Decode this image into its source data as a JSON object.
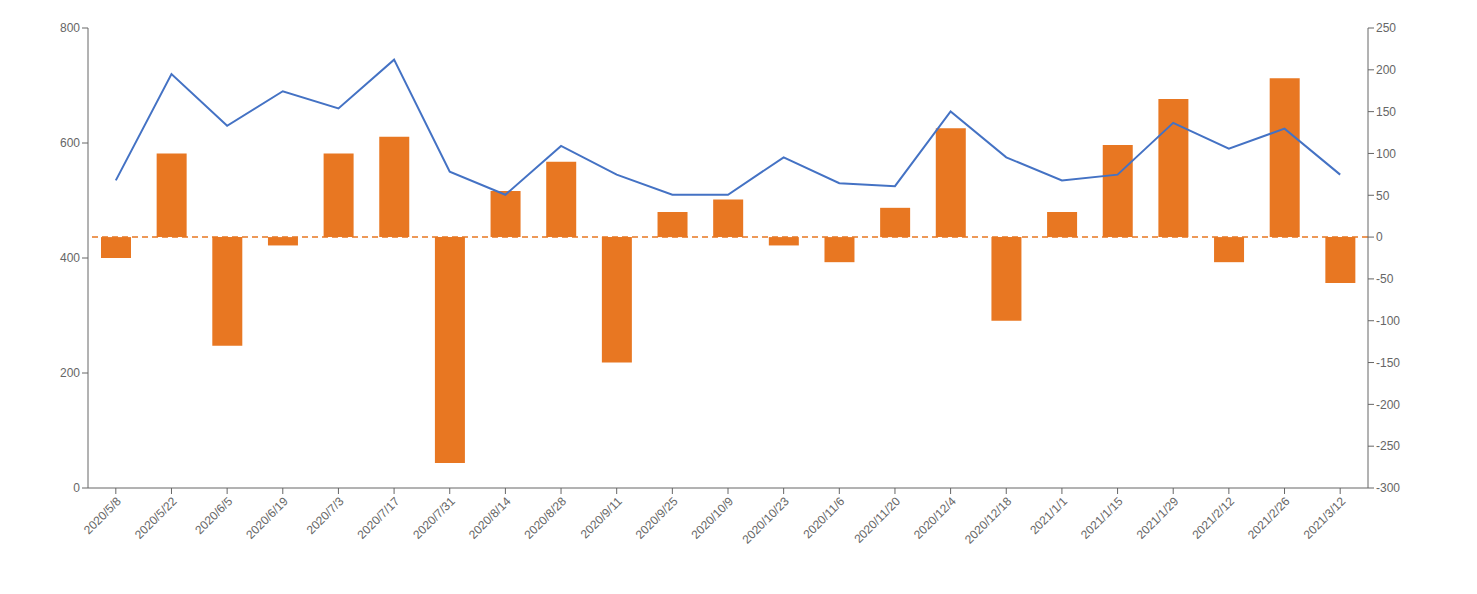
{
  "chart_data": {
    "type": "combo",
    "categories": [
      "2020/5/8",
      "2020/5/22",
      "2020/6/5",
      "2020/6/19",
      "2020/7/3",
      "2020/7/17",
      "2020/7/31",
      "2020/8/14",
      "2020/8/28",
      "2020/9/11",
      "2020/9/25",
      "2020/10/9",
      "2020/10/23",
      "2020/11/6",
      "2020/11/20",
      "2020/12/4",
      "2020/12/18",
      "2021/1/1",
      "2021/1/15",
      "2021/1/29",
      "2021/2/12",
      "2021/2/26",
      "2021/3/12"
    ],
    "series": [
      {
        "type": "bar",
        "axis": "y2",
        "color": "#E87722",
        "values": [
          -25,
          100,
          -130,
          -10,
          100,
          120,
          -270,
          55,
          90,
          -150,
          30,
          45,
          -10,
          -30,
          35,
          130,
          -100,
          30,
          110,
          165,
          -30,
          190,
          -55
        ]
      },
      {
        "type": "line",
        "axis": "y",
        "color": "#4472C4",
        "values": [
          535,
          720,
          630,
          690,
          660,
          745,
          550,
          510,
          595,
          545,
          510,
          510,
          575,
          530,
          525,
          655,
          575,
          535,
          545,
          635,
          590,
          625,
          545
        ]
      }
    ],
    "ylim": [
      0,
      800
    ],
    "yticks": [
      0,
      200,
      400,
      600,
      800
    ],
    "y2lim": [
      -300,
      250
    ],
    "y2ticks": [
      -300,
      -250,
      -200,
      -150,
      -100,
      -50,
      0,
      50,
      100,
      150,
      200,
      250
    ],
    "hlines": [
      {
        "value": 0,
        "axis": "y2",
        "color": "#E87722",
        "line_style": "dashed"
      }
    ],
    "grid": false
  }
}
